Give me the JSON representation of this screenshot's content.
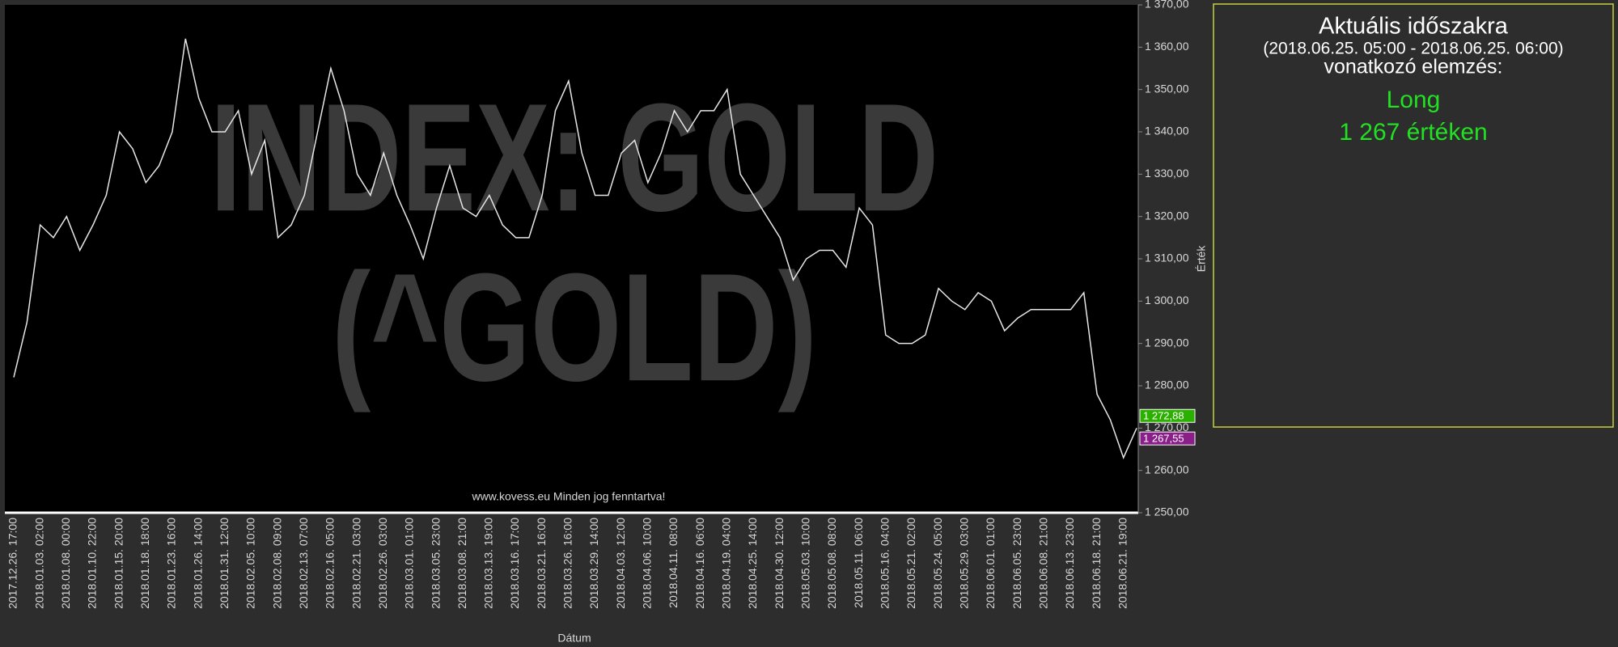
{
  "chart_data": {
    "type": "line",
    "watermark": [
      "INDEX: GOLD",
      "(^GOLD)"
    ],
    "copyright": "www.kovess.eu Minden jog fenntartva!",
    "x_label": "Dátum",
    "y_label": "Érték",
    "categories": [
      "2017.12.26. 17:00",
      null,
      "2018.01.03. 02:00",
      null,
      "2018.01.08. 00:00",
      null,
      "2018.01.10. 22:00",
      null,
      "2018.01.15. 20:00",
      null,
      "2018.01.18. 18:00",
      null,
      "2018.01.23. 16:00",
      null,
      "2018.01.26. 14:00",
      null,
      "2018.01.31. 12:00",
      null,
      "2018.02.05. 10:00",
      null,
      "2018.02.08. 09:00",
      null,
      "2018.02.13. 07:00",
      null,
      "2018.02.16. 05:00",
      null,
      "2018.02.21. 03:00",
      null,
      "2018.02.26. 03:00",
      null,
      "2018.03.01. 01:00",
      null,
      "2018.03.05. 23:00",
      null,
      "2018.03.08. 21:00",
      null,
      "2018.03.13. 19:00",
      null,
      "2018.03.16. 17:00",
      null,
      "2018.03.21. 16:00",
      null,
      "2018.03.26. 16:00",
      null,
      "2018.03.29. 14:00",
      null,
      "2018.04.03. 12:00",
      null,
      "2018.04.06. 10:00",
      null,
      "2018.04.11. 08:00",
      null,
      "2018.04.16. 06:00",
      null,
      "2018.04.19. 04:00",
      null,
      "2018.04.25. 14:00",
      null,
      "2018.04.30. 12:00",
      null,
      "2018.05.03. 10:00",
      null,
      "2018.05.08. 08:00",
      null,
      "2018.05.11. 06:00",
      null,
      "2018.05.16. 04:00",
      null,
      "2018.05.21. 02:00",
      null,
      "2018.05.24. 05:00",
      null,
      "2018.05.29. 03:00",
      null,
      "2018.06.01. 01:00",
      null,
      "2018.06.05. 23:00",
      null,
      "2018.06.08. 21:00",
      null,
      "2018.06.13. 23:00",
      null,
      "2018.06.18. 21:00",
      null,
      "2018.06.21. 19:00",
      null
    ],
    "series": [
      {
        "color": "#e6e6e6",
        "values": [
          1282,
          1295,
          1318,
          1315,
          1320,
          1312,
          1318,
          1325,
          1340,
          1336,
          1328,
          1332,
          1340,
          1362,
          1348,
          1340,
          1340,
          1345,
          1330,
          1338,
          1315,
          1318,
          1325,
          1340,
          1355,
          1345,
          1330,
          1325,
          1335,
          1325,
          1318,
          1310,
          1322,
          1332,
          1322,
          1320,
          1325,
          1318,
          1315,
          1315,
          1325,
          1345,
          1352,
          1335,
          1325,
          1325,
          1335,
          1338,
          1328,
          1335,
          1345,
          1340,
          1345,
          1345,
          1350,
          1330,
          1325,
          1320,
          1315,
          1305,
          1310,
          1312,
          1312,
          1308,
          1322,
          1318,
          1292,
          1290,
          1290,
          1292,
          1303,
          1300,
          1298,
          1302,
          1300,
          1293,
          1296,
          1298,
          1298,
          1298,
          1298,
          1302,
          1278,
          1272,
          1263,
          1270
        ]
      }
    ],
    "ylim": [
      1250,
      1370
    ],
    "yticks": [
      {
        "value": 1250,
        "label": "1 250,00"
      },
      {
        "value": 1260,
        "label": "1 260,00"
      },
      {
        "value": 1270,
        "label": "1 270,00"
      },
      {
        "value": 1280,
        "label": "1 280,00"
      },
      {
        "value": 1290,
        "label": "1 290,00"
      },
      {
        "value": 1300,
        "label": "1 300,00"
      },
      {
        "value": 1310,
        "label": "1 310,00"
      },
      {
        "value": 1320,
        "label": "1 320,00"
      },
      {
        "value": 1330,
        "label": "1 330,00"
      },
      {
        "value": 1340,
        "label": "1 340,00"
      },
      {
        "value": 1350,
        "label": "1 350,00"
      },
      {
        "value": 1360,
        "label": "1 360,00"
      },
      {
        "value": 1370,
        "label": "1 370,00"
      }
    ],
    "price_markers": [
      {
        "value": 1272.88,
        "label": "1 272,88",
        "color": "#2bb000"
      },
      {
        "value": 1267.55,
        "label": "1 267,55",
        "color": "#8a1f8a"
      }
    ]
  },
  "panel": {
    "title": "Aktuális időszakra",
    "period": "(2018.06.25. 05:00 - 2018.06.25. 06:00)",
    "subtitle": "vonatkozó elemzés:",
    "signal": "Long",
    "price": "1 267  értéken"
  }
}
